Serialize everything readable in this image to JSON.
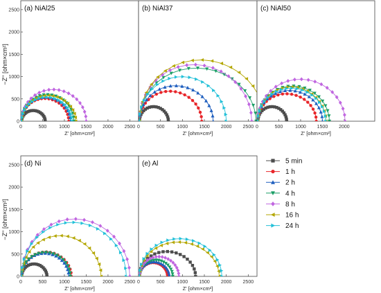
{
  "figure": {
    "ylabel": "−Z'' [ohm×cm²]",
    "xlabel": "Z' [ohm×cm²]",
    "series_colors": {
      "5 min": "#4d4d4d",
      "1 h": "#e8262a",
      "2 h": "#1f5fbf",
      "4 h": "#1a9e66",
      "8 h": "#c066e0",
      "16 h": "#b3a600",
      "24 h": "#22c0d8"
    },
    "series_markers": {
      "5 min": "square",
      "1 h": "circle",
      "2 h": "triangle-up",
      "4 h": "triangle-down",
      "8 h": "diamond",
      "16 h": "triangle-left",
      "24 h": "triangle-right"
    }
  },
  "legend": {
    "items": [
      "5 min",
      "1 h",
      "2 h",
      "4 h",
      "8 h",
      "16 h",
      "24 h"
    ]
  },
  "chart_data": [
    {
      "type": "scatter",
      "title": "(a) NiAl25",
      "xlabel": "Z' [ohm×cm²]",
      "ylabel": "−Z'' [ohm×cm²]",
      "xlim": [
        0,
        2700
      ],
      "ylim": [
        0,
        2700
      ],
      "xticks": [
        0,
        500,
        1000,
        1500,
        2000,
        2500
      ],
      "yticks": [
        0,
        500,
        1000,
        1500,
        2000,
        2500
      ],
      "series": [
        {
          "name": "5 min",
          "center": 290,
          "radius": 270,
          "ymax": 250
        },
        {
          "name": "1 h",
          "center": 560,
          "radius": 540,
          "ymax": 530
        },
        {
          "name": "2 h",
          "center": 580,
          "radius": 560,
          "ymax": 560
        },
        {
          "name": "4 h",
          "center": 620,
          "radius": 600,
          "ymax": 620
        },
        {
          "name": "8 h",
          "center": 760,
          "radius": 740,
          "ymax": 740
        },
        {
          "name": "16 h",
          "center": 640,
          "radius": 620,
          "ymax": 600
        },
        {
          "name": "24 h",
          "center": 600,
          "radius": 580,
          "ymax": 560
        }
      ]
    },
    {
      "type": "scatter",
      "title": "(b) NiAl37",
      "xlabel": "Z' [ohm×cm²]",
      "xlim": [
        0,
        2700
      ],
      "ylim": [
        0,
        2700
      ],
      "xticks": [
        0,
        500,
        1000,
        1500,
        2000,
        2500
      ],
      "series": [
        {
          "name": "5 min",
          "center": 350,
          "radius": 330,
          "ymax": 340
        },
        {
          "name": "1 h",
          "center": 730,
          "radius": 710,
          "ymax": 700
        },
        {
          "name": "2 h",
          "center": 860,
          "radius": 840,
          "ymax": 830
        },
        {
          "name": "4 h",
          "center": 1350,
          "radius": 1330,
          "ymax": 1240
        },
        {
          "name": "8 h",
          "center": 1300,
          "radius": 1280,
          "ymax": 1320
        },
        {
          "name": "16 h",
          "center": 1450,
          "radius": 1430,
          "ymax": 1430
        },
        {
          "name": "24 h",
          "center": 1010,
          "radius": 990,
          "ymax": 1040
        }
      ]
    },
    {
      "type": "scatter",
      "title": "(c) NiAl50",
      "xlabel": "Z' [ohm×cm²]",
      "xlim": [
        0,
        2700
      ],
      "ylim": [
        0,
        2700
      ],
      "xticks": [
        0,
        500,
        1000,
        1500,
        2000
      ],
      "series": [
        {
          "name": "5 min",
          "center": 350,
          "radius": 330,
          "ymax": 340
        },
        {
          "name": "1 h",
          "center": 690,
          "radius": 670,
          "ymax": 640
        },
        {
          "name": "2 h",
          "center": 760,
          "radius": 740,
          "ymax": 720
        },
        {
          "name": "4 h",
          "center": 840,
          "radius": 820,
          "ymax": 820
        },
        {
          "name": "8 h",
          "center": 1020,
          "radius": 1000,
          "ymax": 980
        },
        {
          "name": "16 h",
          "center": 800,
          "radius": 780,
          "ymax": 800
        },
        {
          "name": "24 h",
          "center": 800,
          "radius": 780,
          "ymax": 770
        }
      ]
    },
    {
      "type": "scatter",
      "title": "(d) Ni",
      "xlabel": "Z' [ohm×cm²]",
      "ylabel": "−Z'' [ohm×cm²]",
      "xlim": [
        0,
        2700
      ],
      "ylim": [
        0,
        2700
      ],
      "xticks": [
        0,
        500,
        1000,
        1500,
        2000,
        2500
      ],
      "yticks": [
        0,
        500,
        1000,
        1500,
        2000,
        2500
      ],
      "series": [
        {
          "name": "5 min",
          "center": 310,
          "radius": 290,
          "ymax": 290
        },
        {
          "name": "1 h",
          "center": 590,
          "radius": 570,
          "ymax": 570
        },
        {
          "name": "2 h",
          "center": 560,
          "radius": 540,
          "ymax": 540
        },
        {
          "name": "4 h",
          "center": 580,
          "radius": 560,
          "ymax": 560
        },
        {
          "name": "8 h",
          "center": 1260,
          "radius": 1240,
          "ymax": 1340
        },
        {
          "name": "16 h",
          "center": 930,
          "radius": 910,
          "ymax": 950
        },
        {
          "name": "24 h",
          "center": 1220,
          "radius": 1200,
          "ymax": 1260
        }
      ]
    },
    {
      "type": "scatter",
      "title": "(e) Al",
      "xlabel": "Z' [ohm×cm²]",
      "xlim": [
        0,
        2700
      ],
      "ylim": [
        0,
        2700
      ],
      "xticks": [
        0,
        500,
        1000,
        1500,
        2000,
        2500
      ],
      "series": [
        {
          "name": "5 min",
          "center": 660,
          "radius": 640,
          "ymax": 580
        },
        {
          "name": "1 h",
          "center": 340,
          "radius": 320,
          "ymax": 320
        },
        {
          "name": "2 h",
          "center": 360,
          "radius": 340,
          "ymax": 340
        },
        {
          "name": "4 h",
          "center": 400,
          "radius": 380,
          "ymax": 380
        },
        {
          "name": "8 h",
          "center": 470,
          "radius": 450,
          "ymax": 460
        },
        {
          "name": "16 h",
          "center": 930,
          "radius": 910,
          "ymax": 800
        },
        {
          "name": "24 h",
          "center": 960,
          "radius": 940,
          "ymax": 880
        }
      ]
    }
  ]
}
